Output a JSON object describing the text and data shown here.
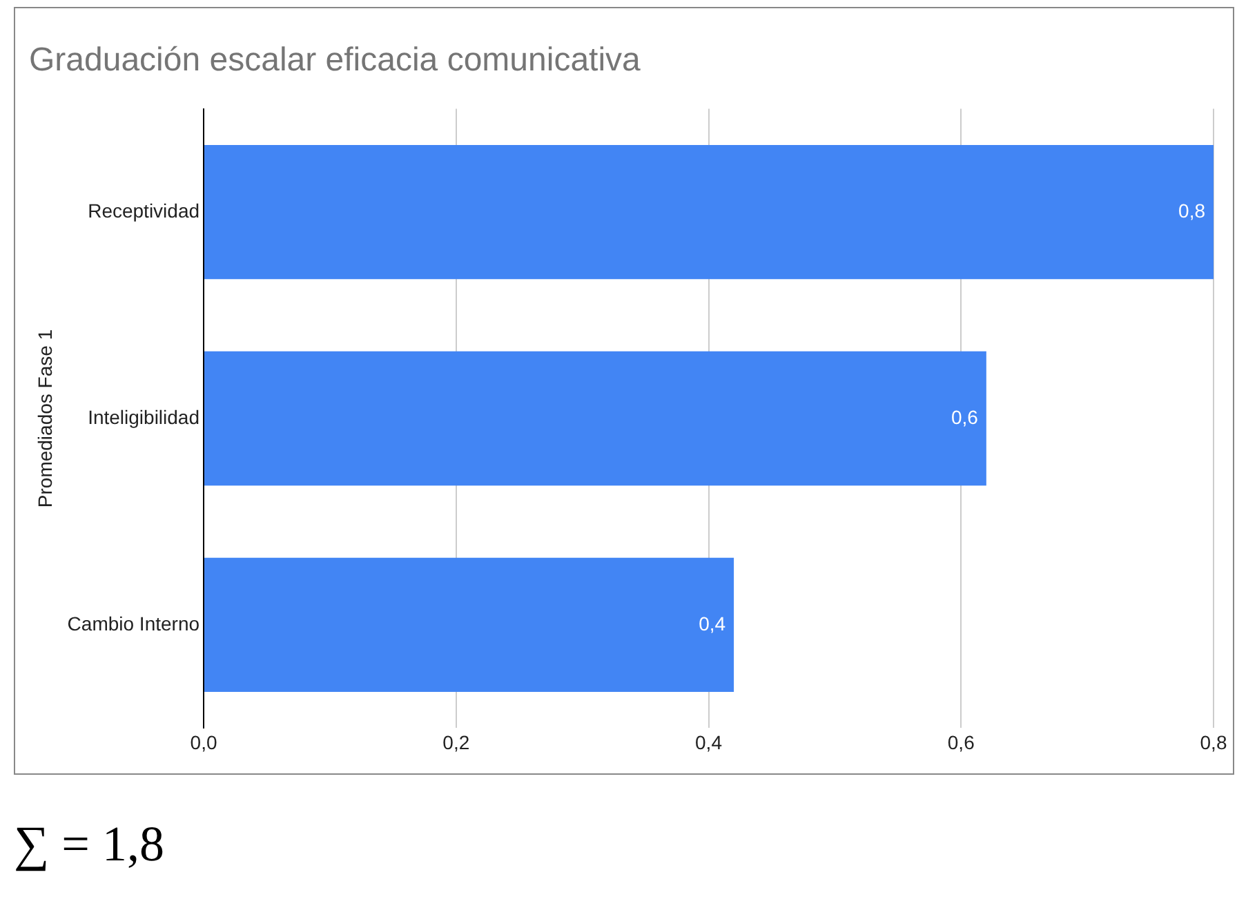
{
  "chart_data": {
    "type": "bar",
    "orientation": "horizontal",
    "title": "Graduación escalar eficacia comunicativa",
    "ylabel": "Promediados Fase 1",
    "categories": [
      "Receptividad",
      "Inteligibilidad",
      "Cambio Interno"
    ],
    "values": [
      0.8,
      0.62,
      0.42
    ],
    "value_labels": [
      "0,8",
      "0,6",
      "0,4"
    ],
    "color": "#4285f4",
    "xlim": [
      0,
      0.8
    ],
    "xticks": [
      {
        "value": 0,
        "label": "0,0"
      },
      {
        "value": 0.2,
        "label": "0,2"
      },
      {
        "value": 0.4,
        "label": "0,4"
      },
      {
        "value": 0.6,
        "label": "0,6"
      },
      {
        "value": 0.8,
        "label": "0,8"
      }
    ],
    "grid": "x",
    "legend": false,
    "annotations": [
      "∑ = 1,8"
    ]
  }
}
